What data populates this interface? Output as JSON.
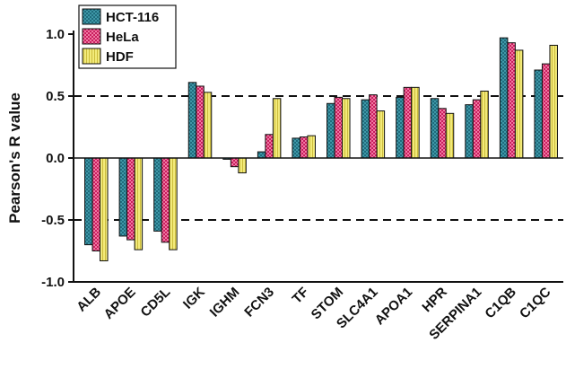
{
  "chart_data": {
    "type": "bar",
    "ylabel": "Pearson's R value",
    "xlabel": "",
    "ylim": [
      -1.0,
      1.0
    ],
    "yticks": [
      "1.0",
      "0.5",
      "0.0",
      "-0.5",
      "-1.0"
    ],
    "ytick_values": [
      1.0,
      0.5,
      0.0,
      -0.5,
      -1.0
    ],
    "reference_lines": [
      0.5,
      -0.5
    ],
    "legend_position": "top-left",
    "categories": [
      "ALB",
      "APOE",
      "CD5L",
      "IGK",
      "IGHM",
      "FCN3",
      "TF",
      "STOM",
      "SLC4A1",
      "APOA1",
      "HPR",
      "SERPINA1",
      "C1QB",
      "C1QC"
    ],
    "series": [
      {
        "name": "HCT-116",
        "color": "#2a7a8c",
        "pattern": "teal-checker",
        "values": [
          -0.7,
          -0.63,
          -0.59,
          0.61,
          -0.01,
          0.05,
          0.16,
          0.44,
          0.47,
          0.49,
          0.48,
          0.43,
          0.97,
          0.71
        ]
      },
      {
        "name": "HeLa",
        "color": "#d6336c",
        "pattern": "pink-checker",
        "values": [
          -0.75,
          -0.66,
          -0.68,
          0.58,
          -0.07,
          0.19,
          0.17,
          0.49,
          0.51,
          0.57,
          0.4,
          0.47,
          0.93,
          0.76
        ]
      },
      {
        "name": "HDF",
        "color": "#e8d95a",
        "pattern": "yellow-stripes",
        "values": [
          -0.83,
          -0.74,
          -0.74,
          0.53,
          -0.12,
          0.48,
          0.18,
          0.48,
          0.38,
          0.57,
          0.36,
          0.54,
          0.87,
          0.91
        ]
      }
    ]
  }
}
